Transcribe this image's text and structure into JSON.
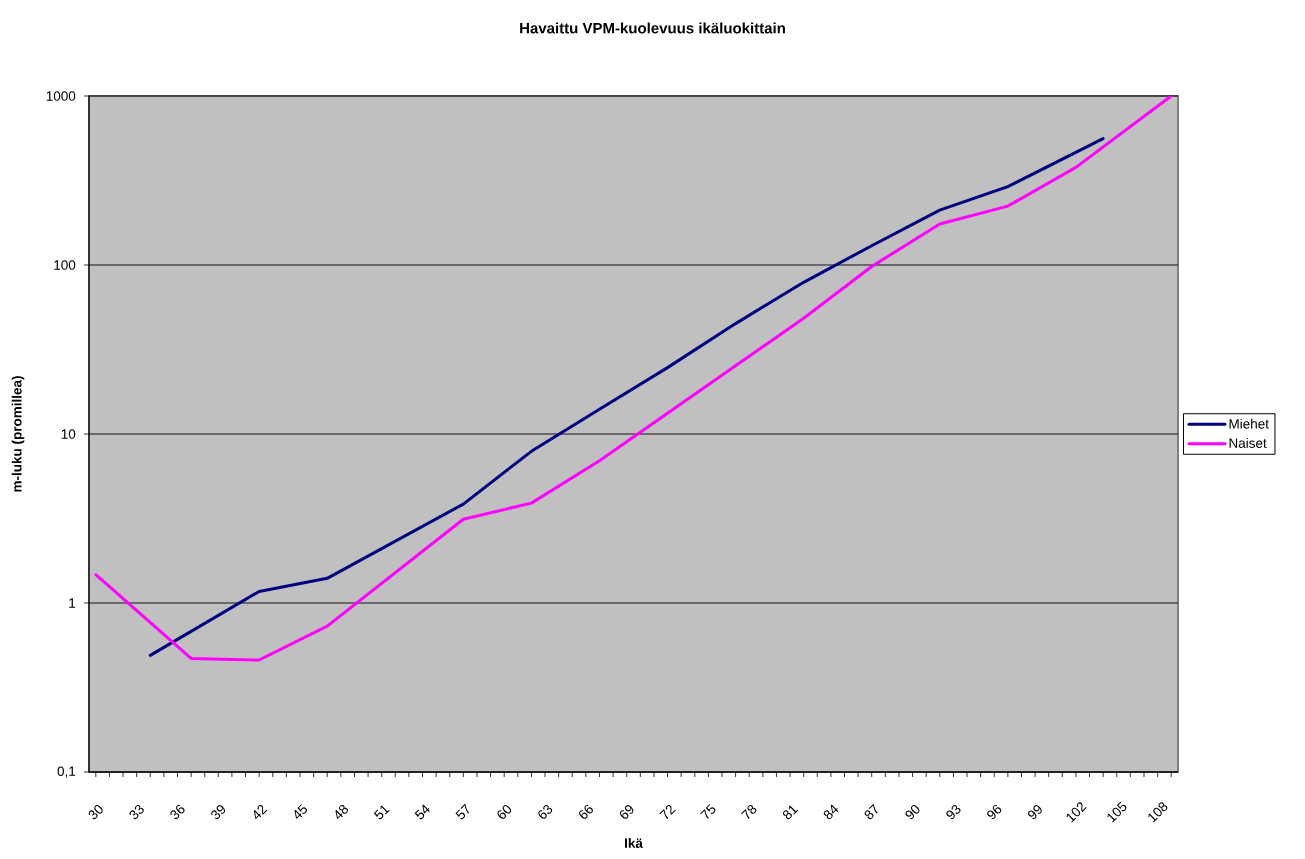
{
  "chart_data": {
    "type": "line",
    "title": "Havaittu VPM-kuolevuus ikäluokittain",
    "xlabel": "Ikä",
    "ylabel": "m-luku (promillea)",
    "series": [
      {
        "name": "Miehet",
        "color": "#000080",
        "x": [
          34,
          42,
          47,
          57,
          62,
          67,
          72,
          77,
          82,
          87,
          92,
          97,
          104
        ],
        "values": [
          0.49,
          1.17,
          1.4,
          3.85,
          7.9,
          14,
          24.7,
          45,
          79,
          130,
          211,
          291,
          560
        ]
      },
      {
        "name": "Naiset",
        "color": "#ff00ff",
        "x": [
          30,
          37,
          42,
          47,
          57,
          62,
          67,
          82,
          87,
          92,
          97,
          102,
          109
        ],
        "values": [
          1.47,
          0.47,
          0.46,
          0.73,
          3.13,
          3.9,
          6.95,
          48.4,
          98,
          175,
          223,
          378,
          1000
        ]
      }
    ],
    "xlim": [
      29.5,
      109.5
    ],
    "xticks": [
      30,
      {
        "value": 31,
        "label": null
      },
      {
        "value": 32,
        "label": null
      },
      33,
      {
        "value": 34,
        "label": null
      },
      {
        "value": 35,
        "label": null
      },
      36,
      {
        "value": 37,
        "label": null
      },
      {
        "value": 38,
        "label": null
      },
      39,
      {
        "value": 40,
        "label": null
      },
      {
        "value": 41,
        "label": null
      },
      42,
      {
        "value": 43,
        "label": null
      },
      {
        "value": 44,
        "label": null
      },
      45,
      {
        "value": 46,
        "label": null
      },
      {
        "value": 47,
        "label": null
      },
      48,
      {
        "value": 49,
        "label": null
      },
      {
        "value": 50,
        "label": null
      },
      51,
      {
        "value": 52,
        "label": null
      },
      {
        "value": 53,
        "label": null
      },
      54,
      {
        "value": 55,
        "label": null
      },
      {
        "value": 56,
        "label": null
      },
      57,
      {
        "value": 58,
        "label": null
      },
      {
        "value": 59,
        "label": null
      },
      60,
      {
        "value": 61,
        "label": null
      },
      {
        "value": 62,
        "label": null
      },
      63,
      {
        "value": 64,
        "label": null
      },
      {
        "value": 65,
        "label": null
      },
      66,
      {
        "value": 67,
        "label": null
      },
      {
        "value": 68,
        "label": null
      },
      69,
      {
        "value": 70,
        "label": null
      },
      {
        "value": 71,
        "label": null
      },
      72,
      {
        "value": 73,
        "label": null
      },
      {
        "value": 74,
        "label": null
      },
      75,
      {
        "value": 76,
        "label": null
      },
      {
        "value": 77,
        "label": null
      },
      78,
      {
        "value": 79,
        "label": null
      },
      {
        "value": 80,
        "label": null
      },
      81,
      {
        "value": 82,
        "label": null
      },
      {
        "value": 83,
        "label": null
      },
      84,
      {
        "value": 85,
        "label": null
      },
      {
        "value": 86,
        "label": null
      },
      87,
      {
        "value": 88,
        "label": null
      },
      {
        "value": 89,
        "label": null
      },
      90,
      {
        "value": 91,
        "label": null
      },
      {
        "value": 92,
        "label": null
      },
      93,
      {
        "value": 94,
        "label": null
      },
      {
        "value": 95,
        "label": null
      },
      96,
      {
        "value": 97,
        "label": null
      },
      {
        "value": 98,
        "label": null
      },
      99,
      {
        "value": 100,
        "label": null
      },
      {
        "value": 101,
        "label": null
      },
      102,
      {
        "value": 103,
        "label": null
      },
      {
        "value": 104,
        "label": null
      },
      105,
      {
        "value": 106,
        "label": null
      },
      {
        "value": 107,
        "label": null
      },
      108,
      {
        "value": 109,
        "label": null
      }
    ],
    "ylim": [
      0.1,
      1000
    ],
    "yticks": [
      {
        "value": 0.1,
        "label": "0,1"
      },
      1,
      10,
      100,
      1000
    ],
    "log": "y",
    "grid": "y",
    "legend": "right"
  }
}
